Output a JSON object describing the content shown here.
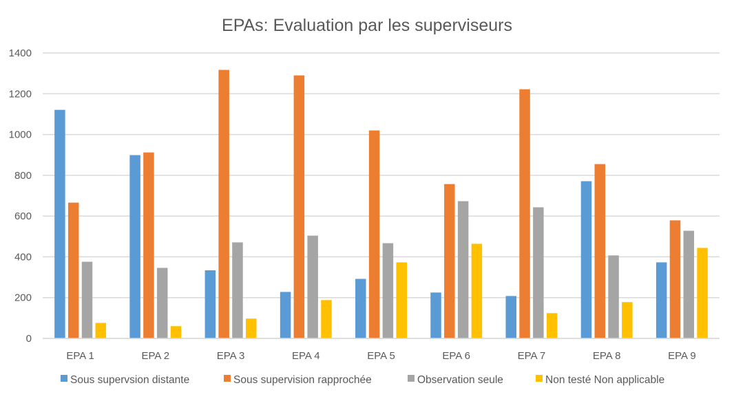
{
  "chart_data": {
    "type": "bar",
    "title": "EPAs:  Evaluation par les superviseurs",
    "xlabel": "",
    "ylabel": "",
    "ylim": [
      0,
      1400
    ],
    "yticks": [
      0,
      200,
      400,
      600,
      800,
      1000,
      1200,
      1400
    ],
    "grid": true,
    "legend_position": "bottom",
    "categories": [
      "EPA 1",
      "EPA 2",
      "EPA 3",
      "EPA 4",
      "EPA 5",
      "EPA 6",
      "EPA 7",
      "EPA 8",
      "EPA 9"
    ],
    "series": [
      {
        "name": "Sous supervsion distante",
        "color": "#5B9BD5",
        "values": [
          1121,
          899,
          334,
          228,
          292,
          225,
          208,
          771,
          373
        ]
      },
      {
        "name": "Sous supervision rapprochée",
        "color": "#ED7D31",
        "values": [
          666,
          912,
          1317,
          1290,
          1020,
          757,
          1222,
          855,
          579
        ]
      },
      {
        "name": "Observation seule",
        "color": "#A5A5A5",
        "values": [
          376,
          346,
          471,
          504,
          467,
          673,
          643,
          407,
          528
        ]
      },
      {
        "name": "Non testé Non applicable",
        "color": "#FFC000",
        "values": [
          76,
          60,
          97,
          188,
          373,
          464,
          124,
          178,
          444
        ]
      }
    ]
  }
}
